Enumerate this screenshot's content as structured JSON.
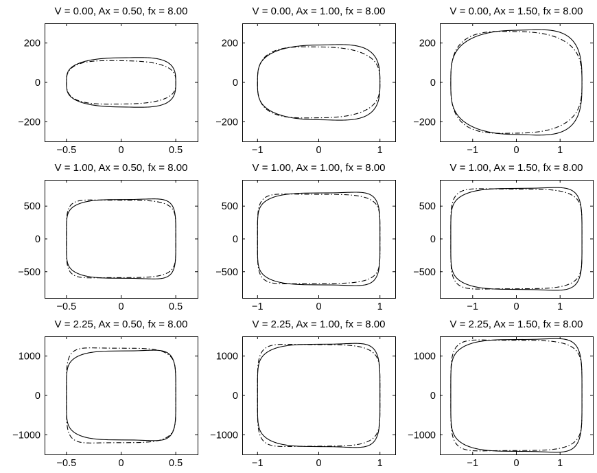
{
  "colors": {
    "background": "#ffffff",
    "line": "#000000"
  },
  "chart_data": [
    {
      "type": "line",
      "title": "V = 0.00, Ax = 0.50, fx = 8.00",
      "xlim": [
        -0.7,
        0.7
      ],
      "ylim": [
        -300,
        300
      ],
      "xticks": [
        -0.5,
        0,
        0.5
      ],
      "xtick_labels": [
        "−0.5",
        "0",
        "0.5"
      ],
      "yticks": [
        -200,
        0,
        200
      ],
      "ytick_labels": [
        "−200",
        "0",
        "200"
      ],
      "series": [
        {
          "style": "solid",
          "x_amplitude": 0.5,
          "y_amplitude": 125,
          "approximate_points": [
            [
              0,
              125
            ],
            [
              0.45,
              98
            ],
            [
              0.5,
              65
            ],
            [
              0.5,
              -65
            ],
            [
              0.45,
              -98
            ],
            [
              0,
              -125
            ],
            [
              -0.45,
              -98
            ],
            [
              -0.5,
              -65
            ],
            [
              -0.5,
              65
            ],
            [
              -0.45,
              98
            ]
          ]
        },
        {
          "style": "dash-dot",
          "x_amplitude": 0.5,
          "y_amplitude": 110
        }
      ]
    },
    {
      "type": "line",
      "title": "V = 0.00, Ax = 1.00, fx = 8.00",
      "xlim": [
        -1.25,
        1.25
      ],
      "ylim": [
        -300,
        300
      ],
      "xticks": [
        -1,
        0,
        1
      ],
      "xtick_labels": [
        "−1",
        "0",
        "1"
      ],
      "yticks": [
        -200,
        0,
        200
      ],
      "ytick_labels": [
        "−200",
        "0",
        "200"
      ],
      "series": [
        {
          "style": "solid",
          "x_amplitude": 1.0,
          "y_amplitude": 190
        },
        {
          "style": "dash-dot",
          "x_amplitude": 1.0,
          "y_amplitude": 180
        }
      ]
    },
    {
      "type": "line",
      "title": "V = 0.00, Ax = 1.50, fx = 8.00",
      "xlim": [
        -1.75,
        1.75
      ],
      "ylim": [
        -300,
        300
      ],
      "xticks": [
        -1,
        0,
        1
      ],
      "xtick_labels": [
        "−1",
        "0",
        "1"
      ],
      "yticks": [
        -200,
        0,
        200
      ],
      "ytick_labels": [
        "−200",
        "0",
        "200"
      ],
      "series": [
        {
          "style": "solid",
          "x_amplitude": 1.5,
          "y_amplitude": 265
        },
        {
          "style": "dash-dot",
          "x_amplitude": 1.5,
          "y_amplitude": 258
        }
      ]
    },
    {
      "type": "line",
      "title": "V = 1.00, Ax = 0.50, fx = 8.00",
      "xlim": [
        -0.7,
        0.7
      ],
      "ylim": [
        -900,
        900
      ],
      "xticks": [
        -0.5,
        0,
        0.5
      ],
      "xtick_labels": [
        "−0.5",
        "0",
        "0.5"
      ],
      "yticks": [
        -500,
        0,
        500
      ],
      "ytick_labels": [
        "−500",
        "0",
        "500"
      ],
      "series": [
        {
          "style": "solid",
          "x_amplitude": 0.5,
          "y_amplitude": 600
        },
        {
          "style": "dash-dot",
          "x_amplitude": 0.5,
          "y_amplitude": 590
        }
      ]
    },
    {
      "type": "line",
      "title": "V = 1.00, Ax = 1.00, fx = 8.00",
      "xlim": [
        -1.25,
        1.25
      ],
      "ylim": [
        -900,
        900
      ],
      "xticks": [
        -1,
        0,
        1
      ],
      "xtick_labels": [
        "−1",
        "0",
        "1"
      ],
      "yticks": [
        -500,
        0,
        500
      ],
      "ytick_labels": [
        "−500",
        "0",
        "500"
      ],
      "series": [
        {
          "style": "solid",
          "x_amplitude": 1.0,
          "y_amplitude": 700
        },
        {
          "style": "dash-dot",
          "x_amplitude": 1.0,
          "y_amplitude": 680
        }
      ]
    },
    {
      "type": "line",
      "title": "V = 1.00, Ax = 1.50, fx = 8.00",
      "xlim": [
        -1.75,
        1.75
      ],
      "ylim": [
        -900,
        900
      ],
      "xticks": [
        -1,
        0,
        1
      ],
      "xtick_labels": [
        "−1",
        "0",
        "1"
      ],
      "yticks": [
        -500,
        0,
        500
      ],
      "ytick_labels": [
        "−500",
        "0",
        "500"
      ],
      "series": [
        {
          "style": "solid",
          "x_amplitude": 1.5,
          "y_amplitude": 770
        },
        {
          "style": "dash-dot",
          "x_amplitude": 1.5,
          "y_amplitude": 760
        }
      ]
    },
    {
      "type": "line",
      "title": "V = 2.25, Ax = 0.50, fx = 8.00",
      "xlim": [
        -0.7,
        0.7
      ],
      "ylim": [
        -1500,
        1500
      ],
      "xticks": [
        -0.5,
        0,
        0.5
      ],
      "xtick_labels": [
        "−0.5",
        "0",
        "0.5"
      ],
      "yticks": [
        -1000,
        0,
        1000
      ],
      "ytick_labels": [
        "−1000",
        "0",
        "1000"
      ],
      "series": [
        {
          "style": "solid",
          "x_amplitude": 0.5,
          "y_amplitude": 1130
        },
        {
          "style": "dash-dot",
          "x_amplitude": 0.5,
          "y_amplitude": 1200
        }
      ]
    },
    {
      "type": "line",
      "title": "V = 2.25, Ax = 1.00, fx = 8.00",
      "xlim": [
        -1.25,
        1.25
      ],
      "ylim": [
        -1500,
        1500
      ],
      "xticks": [
        -1,
        0,
        1
      ],
      "xtick_labels": [
        "−1",
        "0",
        "1"
      ],
      "yticks": [
        -1000,
        0,
        1000
      ],
      "ytick_labels": [
        "−1000",
        "0",
        "1000"
      ],
      "series": [
        {
          "style": "solid",
          "x_amplitude": 1.0,
          "y_amplitude": 1300
        },
        {
          "style": "dash-dot",
          "x_amplitude": 1.0,
          "y_amplitude": 1290
        }
      ]
    },
    {
      "type": "line",
      "title": "V = 2.25, Ax = 1.50, fx = 8.00",
      "xlim": [
        -1.75,
        1.75
      ],
      "ylim": [
        -1500,
        1500
      ],
      "xticks": [
        -1,
        0,
        1
      ],
      "xtick_labels": [
        "−1",
        "0",
        "1"
      ],
      "yticks": [
        -1000,
        0,
        1000
      ],
      "ytick_labels": [
        "−1000",
        "0",
        "1000"
      ],
      "series": [
        {
          "style": "solid",
          "x_amplitude": 1.5,
          "y_amplitude": 1420
        },
        {
          "style": "dash-dot",
          "x_amplitude": 1.5,
          "y_amplitude": 1400
        }
      ]
    }
  ]
}
